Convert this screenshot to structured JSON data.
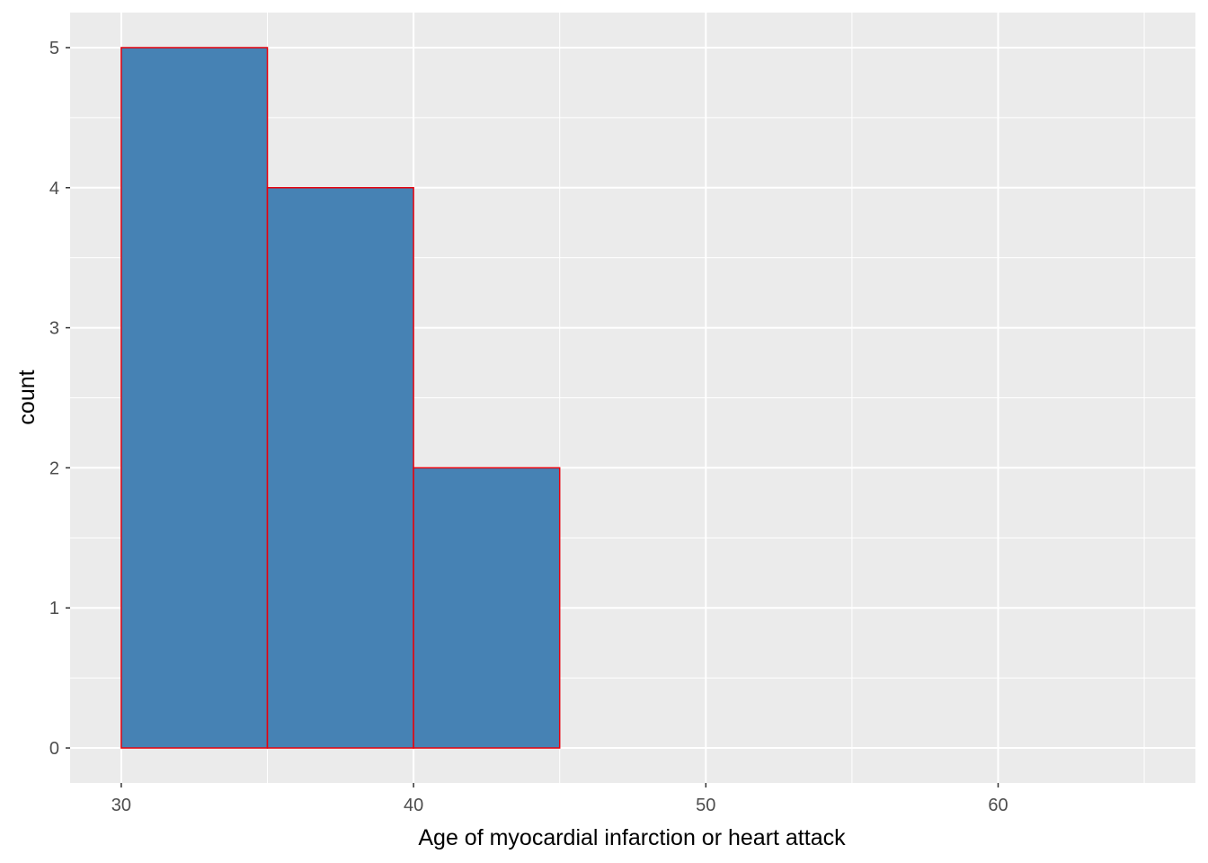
{
  "chart_data": {
    "type": "bar",
    "subtype": "histogram",
    "title": "",
    "xlabel": "Age of myocardial infarction or heart attack",
    "ylabel": "count",
    "bins": [
      {
        "x_start": 30,
        "x_end": 35,
        "count": 5
      },
      {
        "x_start": 35,
        "x_end": 40,
        "count": 4
      },
      {
        "x_start": 40,
        "x_end": 45,
        "count": 2
      },
      {
        "x_start": 45,
        "x_end": 50,
        "count": 0
      },
      {
        "x_start": 50,
        "x_end": 55,
        "count": 0
      },
      {
        "x_start": 55,
        "x_end": 60,
        "count": 0
      },
      {
        "x_start": 60,
        "x_end": 65,
        "count": 0
      }
    ],
    "xlim": [
      28.25,
      66.75
    ],
    "ylim": [
      -0.25,
      5.25
    ],
    "x_ticks": [
      30,
      40,
      50,
      60
    ],
    "x_minor_ticks": [
      35,
      45,
      55,
      65
    ],
    "y_ticks": [
      0,
      1,
      2,
      3,
      4,
      5
    ],
    "y_minor_ticks": [
      0.5,
      1.5,
      2.5,
      3.5,
      4.5
    ],
    "grid": true,
    "colors": {
      "bar_fill": "#4682b4",
      "bar_outline": "#e8000b",
      "panel_background": "#ebebeb",
      "grid": "#ffffff"
    }
  }
}
